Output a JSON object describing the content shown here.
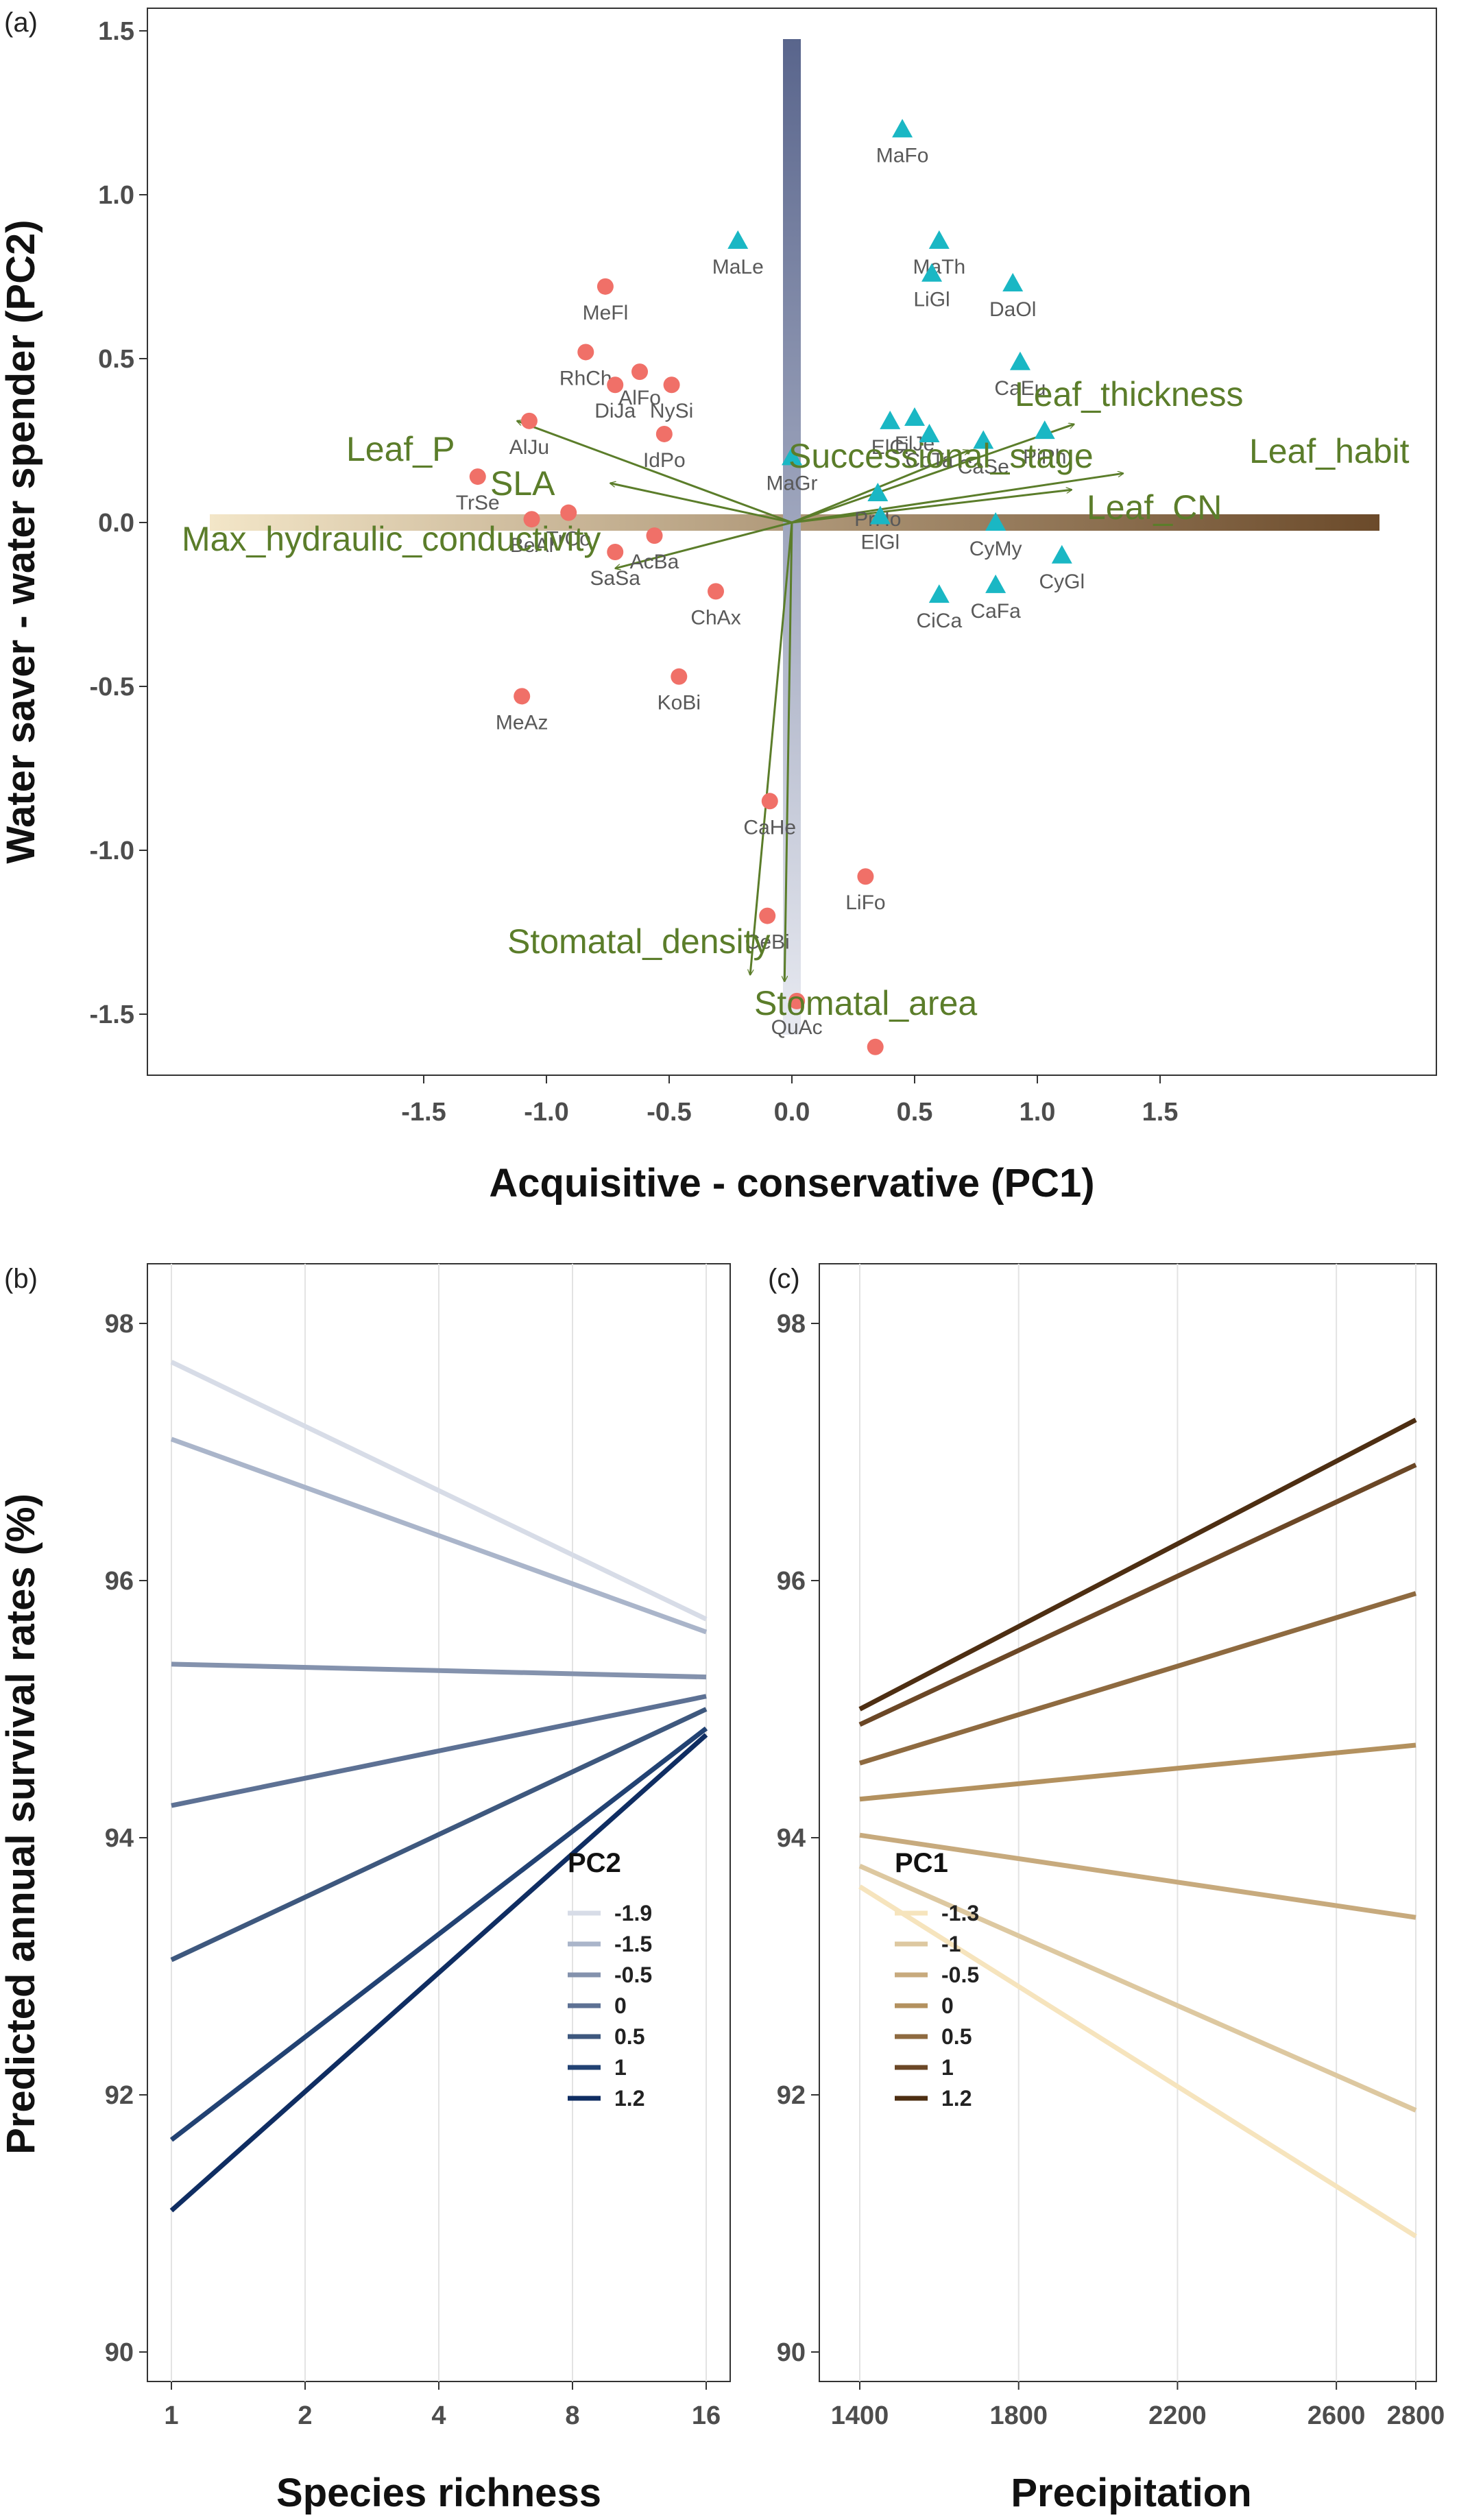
{
  "chart_data": [
    {
      "panel": "(a)",
      "type": "scatter",
      "xlabel": "Acquisitive - conservative (PC1)",
      "ylabel": "Water saver - water spender (PC2)",
      "xlim": [
        -1.9,
        1.9
      ],
      "ylim": [
        -1.7,
        1.55
      ],
      "x_ticks": [
        -1.5,
        -1.0,
        -0.5,
        0.0,
        0.5,
        1.0,
        1.5
      ],
      "y_ticks": [
        -1.5,
        -1.0,
        -0.5,
        0.0,
        0.5,
        1.0,
        1.5
      ],
      "grid": false,
      "colors": {
        "circle": "#f07068",
        "triangle": "#1ab7c4",
        "vector": "#5b7d2a",
        "pc1_bar_start": "#f3e6c8",
        "pc1_bar_end": "#6b4a2a",
        "pc2_bar_top": "#59658c",
        "pc2_bar_bottom": "#e4e7ef"
      },
      "points": [
        {
          "label": "TrSe",
          "x": -1.28,
          "y": 0.14,
          "shape": "circle"
        },
        {
          "label": "AlJu",
          "x": -1.07,
          "y": 0.31,
          "shape": "circle"
        },
        {
          "label": "BeAl",
          "x": -1.06,
          "y": 0.01,
          "shape": "circle"
        },
        {
          "label": "TrCo",
          "x": -0.91,
          "y": 0.03,
          "shape": "circle"
        },
        {
          "label": "RhCh",
          "x": -0.84,
          "y": 0.52,
          "shape": "circle"
        },
        {
          "label": "MeFl",
          "x": -0.76,
          "y": 0.72,
          "shape": "circle"
        },
        {
          "label": "DiJa",
          "x": -0.72,
          "y": 0.42,
          "shape": "circle"
        },
        {
          "label": "SaSa",
          "x": -0.72,
          "y": -0.09,
          "shape": "circle"
        },
        {
          "label": "AlFo",
          "x": -0.62,
          "y": 0.46,
          "shape": "circle"
        },
        {
          "label": "AcBa",
          "x": -0.56,
          "y": -0.04,
          "shape": "circle"
        },
        {
          "label": "NySi",
          "x": -0.49,
          "y": 0.42,
          "shape": "circle"
        },
        {
          "label": "IdPo",
          "x": -0.52,
          "y": 0.27,
          "shape": "circle"
        },
        {
          "label": "KoBi",
          "x": -0.46,
          "y": -0.47,
          "shape": "circle"
        },
        {
          "label": "ChAx",
          "x": -0.31,
          "y": -0.21,
          "shape": "circle"
        },
        {
          "label": "MeAz",
          "x": -1.1,
          "y": -0.53,
          "shape": "circle"
        },
        {
          "label": "CaHe",
          "x": -0.09,
          "y": -0.85,
          "shape": "circle"
        },
        {
          "label": "CeBi",
          "x": -0.1,
          "y": -1.2,
          "shape": "circle"
        },
        {
          "label": "QuAc",
          "x": 0.02,
          "y": -1.46,
          "shape": "circle"
        },
        {
          "label": "LiFo",
          "x": 0.3,
          "y": -1.08,
          "shape": "circle"
        },
        {
          "label": "",
          "x": 0.34,
          "y": -1.6,
          "shape": "circle"
        },
        {
          "label": "MaLe",
          "x": -0.22,
          "y": 0.86,
          "shape": "triangle"
        },
        {
          "label": "MaFo",
          "x": 0.45,
          "y": 1.2,
          "shape": "triangle"
        },
        {
          "label": "MaTh",
          "x": 0.6,
          "y": 0.86,
          "shape": "triangle"
        },
        {
          "label": "LiGl",
          "x": 0.57,
          "y": 0.76,
          "shape": "triangle"
        },
        {
          "label": "DaOl",
          "x": 0.9,
          "y": 0.73,
          "shape": "triangle"
        },
        {
          "label": "CaEu",
          "x": 0.93,
          "y": 0.49,
          "shape": "triangle"
        },
        {
          "label": "MaGr",
          "x": 0.0,
          "y": 0.2,
          "shape": "triangle"
        },
        {
          "label": "ElCi",
          "x": 0.4,
          "y": 0.31,
          "shape": "triangle"
        },
        {
          "label": "ElJe",
          "x": 0.5,
          "y": 0.32,
          "shape": "triangle"
        },
        {
          "label": "CoTa",
          "x": 0.56,
          "y": 0.27,
          "shape": "triangle"
        },
        {
          "label": "CaSe",
          "x": 0.78,
          "y": 0.25,
          "shape": "triangle"
        },
        {
          "label": "PiPh",
          "x": 1.03,
          "y": 0.28,
          "shape": "triangle"
        },
        {
          "label": "PrHo",
          "x": 0.35,
          "y": 0.09,
          "shape": "triangle"
        },
        {
          "label": "ElGl",
          "x": 0.36,
          "y": 0.02,
          "shape": "triangle"
        },
        {
          "label": "CyMy",
          "x": 0.83,
          "y": 0.0,
          "shape": "triangle"
        },
        {
          "label": "CyGl",
          "x": 1.1,
          "y": -0.1,
          "shape": "triangle"
        },
        {
          "label": "CiCa",
          "x": 0.6,
          "y": -0.22,
          "shape": "triangle"
        },
        {
          "label": "CaFa",
          "x": 0.83,
          "y": -0.19,
          "shape": "triangle"
        }
      ],
      "vectors": [
        {
          "label": "Leaf_P",
          "x": -1.12,
          "y": 0.31
        },
        {
          "label": "SLA",
          "x": -0.74,
          "y": 0.12
        },
        {
          "label": "Max_hydraulic_conductivity",
          "x": -0.72,
          "y": -0.14
        },
        {
          "label": "Stomatal_density",
          "x": -0.17,
          "y": -1.38
        },
        {
          "label": "Stomatal_area",
          "x": -0.03,
          "y": -1.4
        },
        {
          "label": "Successional_stage",
          "x": 0.72,
          "y": 0.22
        },
        {
          "label": "Leaf_thickness",
          "x": 1.15,
          "y": 0.3
        },
        {
          "label": "Leaf_habit",
          "x": 1.35,
          "y": 0.15
        },
        {
          "label": "Leaf_CN",
          "x": 1.14,
          "y": 0.1
        }
      ]
    },
    {
      "panel": "(b)",
      "type": "line",
      "xlabel": "Species richness",
      "ylabel": "Predicted annual survival rates (%)",
      "x_scale": "log2",
      "x": [
        1,
        16
      ],
      "x_ticks": [
        1,
        2,
        4,
        8,
        16
      ],
      "ylim": [
        90,
        98
      ],
      "y_ticks": [
        90,
        92,
        94,
        96,
        98
      ],
      "grid": "vertical",
      "legend_title": "PC2",
      "legend_position": "bottom-right",
      "series": [
        {
          "name": "-1.9",
          "values": [
            97.7,
            95.7
          ],
          "color": "#d7dce7"
        },
        {
          "name": "-1.5",
          "values": [
            97.1,
            95.6
          ],
          "color": "#aab5ca"
        },
        {
          "name": "-0.5",
          "values": [
            95.35,
            95.25
          ],
          "color": "#8492ad"
        },
        {
          "name": "0",
          "values": [
            94.25,
            95.1
          ],
          "color": "#5d7194"
        },
        {
          "name": "0.5",
          "values": [
            93.05,
            95.0
          ],
          "color": "#3e587e"
        },
        {
          "name": "1",
          "values": [
            91.65,
            94.85
          ],
          "color": "#224273"
        },
        {
          "name": "1.2",
          "values": [
            91.1,
            94.8
          ],
          "color": "#0f2d62"
        }
      ]
    },
    {
      "panel": "(c)",
      "type": "line",
      "xlabel": "Precipitation",
      "ylabel": "",
      "x": [
        1400,
        2800
      ],
      "x_ticks": [
        1400,
        1800,
        2200,
        2600,
        2800
      ],
      "ylim": [
        90,
        98
      ],
      "y_ticks": [
        90,
        92,
        94,
        96,
        98
      ],
      "grid": "vertical",
      "legend_title": "PC1",
      "legend_position": "bottom-left",
      "series": [
        {
          "name": "-1.3",
          "values": [
            93.62,
            90.9
          ],
          "color": "#f6e4bd"
        },
        {
          "name": "-1",
          "values": [
            93.78,
            91.88
          ],
          "color": "#ddc8a0"
        },
        {
          "name": "-0.5",
          "values": [
            94.02,
            93.38
          ],
          "color": "#c7aa7d"
        },
        {
          "name": "0",
          "values": [
            94.3,
            94.72
          ],
          "color": "#b3915f"
        },
        {
          "name": "0.5",
          "values": [
            94.58,
            95.9
          ],
          "color": "#8e6a40"
        },
        {
          "name": "1",
          "values": [
            94.88,
            96.9
          ],
          "color": "#6b4726"
        },
        {
          "name": "1.2",
          "values": [
            95.0,
            97.25
          ],
          "color": "#4d2e12"
        }
      ]
    }
  ]
}
